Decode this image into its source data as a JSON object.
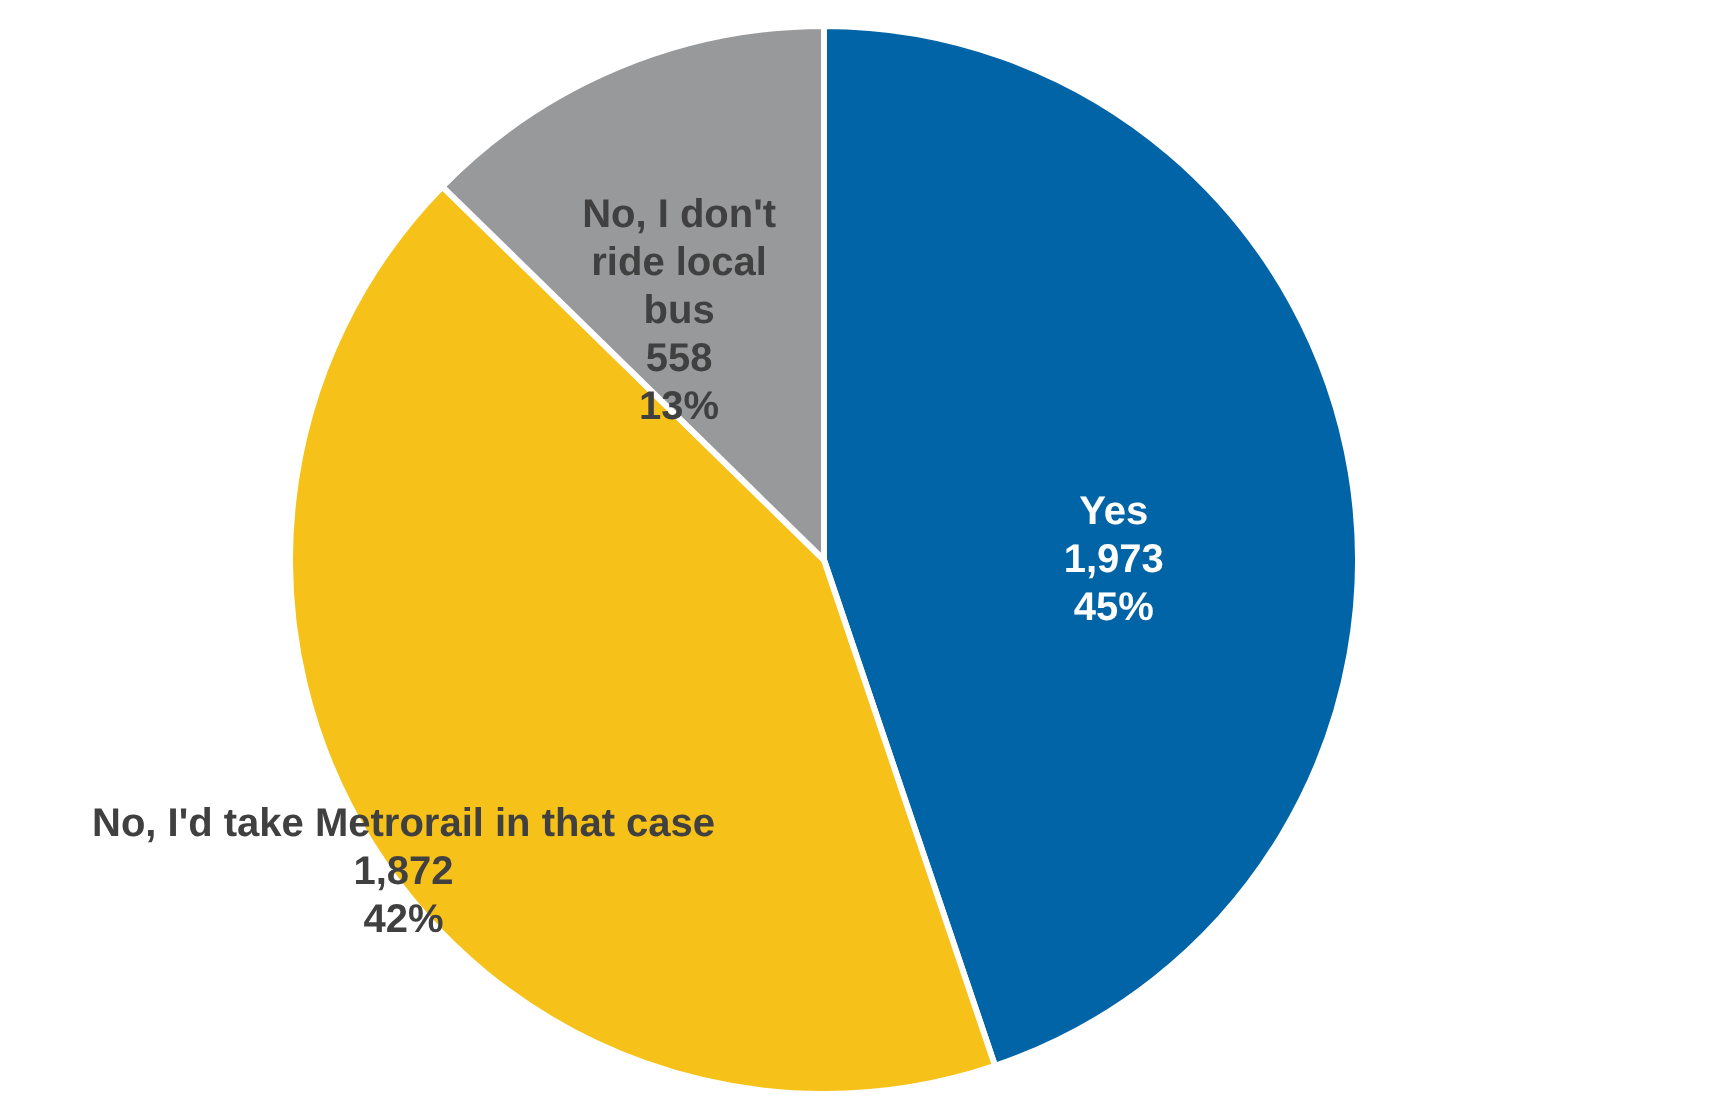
{
  "chart_data": {
    "type": "pie",
    "categories": [
      "Yes",
      "No, I'd take Metrorail in that case",
      "No, I don't ride local bus"
    ],
    "values": [
      1973,
      1872,
      558
    ],
    "colors": [
      "#0064a6",
      "#f6c119",
      "#98999b"
    ],
    "value_labels": [
      "1,973\n45%",
      "1,872\n42%",
      "558\n13%"
    ]
  }
}
